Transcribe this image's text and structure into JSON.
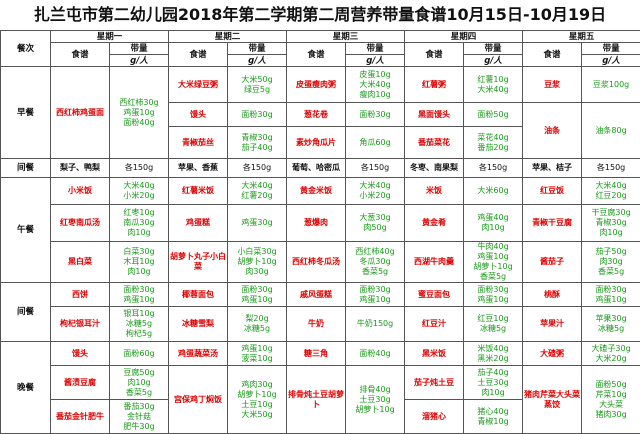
{
  "title": "扎兰屯市第二幼儿园2018年第二学期第二周营养带量食谱10月15日-10月19日",
  "header": {
    "meal_label": "餐次",
    "days": [
      "星期一",
      "星期二",
      "星期三",
      "星期四",
      "星期五"
    ],
    "dish_label": "食谱",
    "amount_label": "带量",
    "unit": "g/人"
  },
  "meals": {
    "breakfast": "早餐",
    "snack1": "间餐",
    "lunch": "午餐",
    "snack2": "间餐",
    "dinner": "晚餐"
  },
  "breakfast": {
    "mon": [
      {
        "dish": "西红柿鸡蛋面",
        "amt": "西红柿30g\n鸡蛋10g\n面粉40g"
      }
    ],
    "tue": [
      {
        "dish": "大米绿豆粥",
        "amt": "大米50g\n绿豆5g"
      },
      {
        "dish": "馒头",
        "amt": "面粉30g"
      },
      {
        "dish": "青椒茄丝",
        "amt": "青椒30g\n茄子40g"
      }
    ],
    "wed": [
      {
        "dish": "皮蛋瘦肉粥",
        "amt": "皮蛋10g\n大米40g\n瘦肉10g"
      },
      {
        "dish": "葱花卷",
        "amt": "面粉30g"
      },
      {
        "dish": "素炒角瓜片",
        "amt": "角瓜60g"
      }
    ],
    "thu": [
      {
        "dish": "红薯粥",
        "amt": "红薯10g\n大米40g"
      },
      {
        "dish": "黑面馒头",
        "amt": "面粉50g"
      },
      {
        "dish": "番茄菜花",
        "amt": "菜花40g\n番茄20g"
      }
    ],
    "fri": [
      {
        "dish": "豆浆",
        "amt": "豆浆100g"
      },
      {
        "dish": "油条",
        "amt": "油条80g"
      }
    ]
  },
  "snack1": {
    "mon": {
      "dish": "梨子、鸭梨",
      "amt": "各150g"
    },
    "tue": {
      "dish": "苹果、香蕉",
      "amt": "各150g"
    },
    "wed": {
      "dish": "葡萄、哈密瓜",
      "amt": "各150g"
    },
    "thu": {
      "dish": "冬枣、南果梨",
      "amt": "各150g"
    },
    "fri": {
      "dish": "苹果、桔子",
      "amt": "各150g"
    }
  },
  "lunch": {
    "mon": [
      {
        "dish": "小米饭",
        "amt": "大米40g\n小米20g"
      },
      {
        "dish": "红枣南瓜汤",
        "amt": "红枣10g\n南瓜30g\n肉10g"
      },
      {
        "dish": "黑白菜",
        "amt": "白菜30g\n木耳10g\n肉10g"
      }
    ],
    "tue": [
      {
        "dish": "红薯米饭",
        "amt": "大米40g\n红薯20g"
      },
      {
        "dish": "鸡蛋糕",
        "amt": "鸡蛋30g"
      },
      {
        "dish": "胡萝卜丸子小白菜",
        "amt": "小白菜30g\n胡萝卜10g\n肉30g"
      }
    ],
    "wed": [
      {
        "dish": "黄金米饭",
        "amt": "大米40g\n小米20g"
      },
      {
        "dish": "葱爆肉",
        "amt": "大葱30g\n肉50g"
      },
      {
        "dish": "西红柿冬瓜汤",
        "amt": "西红柿40g\n冬瓜30g\n香菜5g"
      }
    ],
    "thu": [
      {
        "dish": "米饭",
        "amt": "大米60g"
      },
      {
        "dish": "黄金肴",
        "amt": "鸡蛋40g\n肉10g"
      },
      {
        "dish": "西湖牛肉羹",
        "amt": "牛肉40g\n鸡蛋10g\n胡萝卜10g\n香菜5g"
      }
    ],
    "fri": [
      {
        "dish": "红豆饭",
        "amt": "大米40g\n红豆20g"
      },
      {
        "dish": "青椒干豆腐",
        "amt": "干豆腐30g\n青椒30g\n肉10g"
      },
      {
        "dish": "酱茄子",
        "amt": "茄子50g\n肉30g\n香菜5g"
      }
    ]
  },
  "snack2": {
    "mon": [
      {
        "dish": "西饼",
        "amt": "面粉30g\n鸡蛋10g"
      },
      {
        "dish": "枸杞银耳汁",
        "amt": "银耳10g\n冰糖5g\n枸杞5g"
      }
    ],
    "tue": [
      {
        "dish": "椰蓉面包",
        "amt": "面粉30g\n鸡蛋10g"
      },
      {
        "dish": "冰糖雪梨",
        "amt": "梨20g\n冰糖5g"
      }
    ],
    "wed": [
      {
        "dish": "戚风蛋糕",
        "amt": "面粉30g\n鸡蛋10g"
      },
      {
        "dish": "牛奶",
        "amt": "牛奶150g"
      }
    ],
    "thu": [
      {
        "dish": "蜜豆面包",
        "amt": "面粉30g\n鸡蛋10g"
      },
      {
        "dish": "红豆汁",
        "amt": "红豆10g\n冰糖5g"
      }
    ],
    "fri": [
      {
        "dish": "桃酥",
        "amt": "面粉30g\n鸡蛋10g"
      },
      {
        "dish": "苹果汁",
        "amt": "苹果30g\n冰糖5g"
      }
    ]
  },
  "dinner": {
    "mon": [
      {
        "dish": "馒头",
        "amt": "面粉60g"
      },
      {
        "dish": "酱渍豆腐",
        "amt": "豆腐50g\n肉10g\n香菜5g"
      },
      {
        "dish": "番茄金针肥牛",
        "amt": "番茄30g\n金针菇\n肥牛30g"
      }
    ],
    "tue": [
      {
        "dish": "鸡蛋蔬菜汤",
        "amt": "鸡蛋10g\n菠菜10g"
      },
      {
        "dish": "宫保鸡丁焖饭",
        "amt": "鸡肉30g\n胡萝卜10g\n土豆10g\n大米50g"
      }
    ],
    "wed": [
      {
        "dish": "糖三角",
        "amt": "面粉40g"
      },
      {
        "dish": "排骨炖土豆胡萝卜",
        "amt": "排骨40g\n土豆30g\n胡萝卜10g"
      }
    ],
    "thu": [
      {
        "dish": "黑米饭",
        "amt": "米饭40g\n黑米20g"
      },
      {
        "dish": "茄子炖土豆",
        "amt": "茄子40g\n土豆30g\n肉10g"
      },
      {
        "dish": "溜猪心",
        "amt": "猪心40g\n青椒10g"
      }
    ],
    "fri": [
      {
        "dish": "大碴粥",
        "amt": "大碴子30g\n大米20g"
      },
      {
        "dish": "猪肉芹菜大头菜蒸饺",
        "amt": "面粉50g\n芹菜10g\n大头菜\n猪肉30g"
      }
    ]
  }
}
